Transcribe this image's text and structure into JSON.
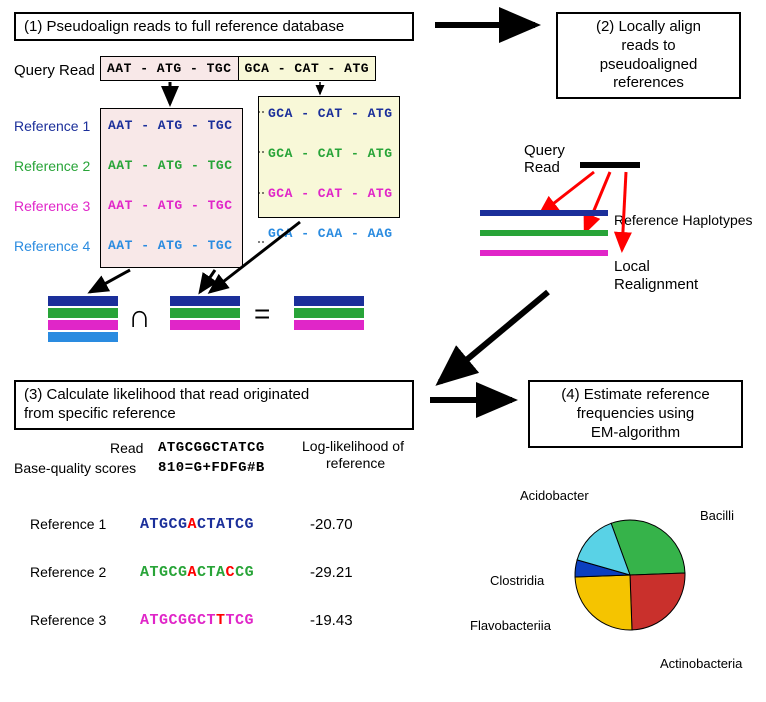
{
  "panel1": {
    "title": "(1) Pseudoalign reads to full reference database",
    "query_label": "Query Read",
    "query_seq_left": "AAT - ATG - TGC",
    "query_seq_right": "GCA - CAT - ATG",
    "refs": [
      {
        "label": "Reference 1",
        "seq_left": "AAT - ATG - TGC",
        "seq_right": "GCA - CAT - ATG",
        "color": "#1b2f9a"
      },
      {
        "label": "Reference 2",
        "seq_left": "AAT - ATG - TGC",
        "seq_right": "GCA - CAT - ATG",
        "color": "#28a438"
      },
      {
        "label": "Reference 3",
        "seq_left": "AAT - ATG - TGC",
        "seq_right": "GCA - CAT - ATG",
        "color": "#e026c8"
      },
      {
        "label": "Reference 4",
        "seq_left": "AAT - ATG - TGC",
        "seq_right": "GCA - CAA - AAG",
        "color": "#2a8be0"
      }
    ],
    "bigcap": "∩",
    "equals": "=",
    "stack1_colors": [
      "#1b2f9a",
      "#28a438",
      "#e026c8",
      "#2a8be0"
    ],
    "stack2_colors": [
      "#1b2f9a",
      "#28a438",
      "#e026c8"
    ],
    "stack3_colors": [
      "#1b2f9a",
      "#28a438",
      "#e026c8"
    ],
    "query_left_bg": "#f8e8e8",
    "query_right_bg": "#f8f8d8",
    "left_box_bg": "#f8e8e8",
    "right_box_bg": "#f8f8d8"
  },
  "panel2": {
    "title_l1": "(2) Locally align",
    "title_l2": "reads to",
    "title_l3": "pseudoaligned",
    "title_l4": "references",
    "query_label": "Query",
    "read_label": "Read",
    "ref_hap_label": "Reference Haplotypes",
    "local_label_l1": "Local",
    "local_label_l2": "Realignment",
    "hap_colors": [
      "#1b2f9a",
      "#28a438",
      "#e026c8"
    ],
    "arrow_color": "#ff0000"
  },
  "panel3": {
    "title_l1": "(3) Calculate likelihood that read originated",
    "title_l2": "from specific reference",
    "read_label": "Read",
    "read_seq": "ATGCGGCTATCG",
    "bq_label": "Base-quality scores",
    "bq_seq": "810=G+FDFG#B",
    "ll_header": "Log-likelihood of",
    "ll_header2": "reference",
    "refs": [
      {
        "label": "Reference 1",
        "seq_plain": [
          "ATGCG",
          "A",
          "CTATCG"
        ],
        "color": "#1b2f9a",
        "ll": "-20.70"
      },
      {
        "label": "Reference 2",
        "seq_plain": [
          "ATGCG",
          "A",
          "CTA",
          "C",
          "CG"
        ],
        "color": "#28a438",
        "ll": "-29.21"
      },
      {
        "label": "Reference 3",
        "seq_plain": [
          "ATGCGGCT",
          "T",
          "TCG"
        ],
        "color": "#e026c8",
        "ll": "-19.43"
      }
    ],
    "mismatch_color": "#ff0000"
  },
  "panel4": {
    "title_l1": "(4) Estimate reference",
    "title_l2": "frequencies using",
    "title_l3": "EM-algorithm",
    "pie": {
      "slices": [
        {
          "label": "Acidobacter",
          "color": "#36b34a",
          "value": 30
        },
        {
          "label": "Bacilli",
          "color": "#c9302c",
          "value": 25
        },
        {
          "label": "Actinobacteria",
          "color": "#f5c400",
          "value": 25
        },
        {
          "label": "Flavobacteriia",
          "color": "#0b3fbf",
          "value": 5
        },
        {
          "label": "Clostridia",
          "color": "#59d2e6",
          "value": 15
        }
      ],
      "radius": 55,
      "stroke": "#000000",
      "fontsize": 13
    }
  },
  "arrows": {
    "color": "#000000",
    "width": 3
  }
}
